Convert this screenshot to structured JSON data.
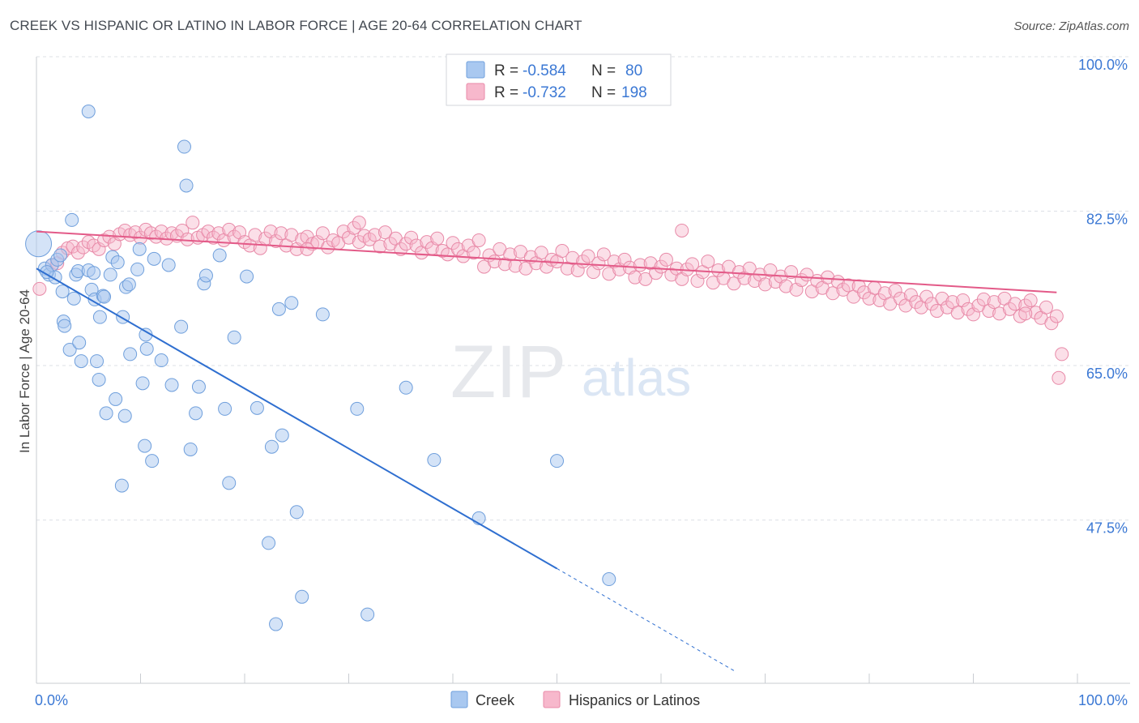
{
  "title": "CREEK VS HISPANIC OR LATINO IN LABOR FORCE | AGE 20-64 CORRELATION CHART",
  "source": "Source: ZipAtlas.com",
  "watermark": {
    "zip": "ZIP",
    "atlas": "atlas"
  },
  "colors": {
    "creek_fill": "#a9c8f0",
    "creek_stroke": "#6f9fdc",
    "creek_line": "#2f6fd0",
    "hisp_fill": "#f7b8cc",
    "hisp_stroke": "#e88aa8",
    "hisp_line": "#e35a88",
    "axis_text": "#3b78d4",
    "grid": "#dde0e6"
  },
  "legend": {
    "rows": [
      {
        "r_label": "R = ",
        "r_value": "-0.584",
        "n_label": "N = ",
        "n_value": "80"
      },
      {
        "r_label": "R = ",
        "r_value": "-0.732",
        "n_label": "N = ",
        "n_value": "198"
      }
    ]
  },
  "bottom_legend": {
    "creek": "Creek",
    "hisp": "Hispanics or Latinos"
  },
  "chart_data": {
    "type": "scatter",
    "ylabel": "In Labor Force | Age 20-64",
    "xlim": [
      0,
      100
    ],
    "ylim": [
      29,
      100
    ],
    "x_tick_labels": [
      "0.0%",
      "100.0%"
    ],
    "y_ticks": [
      {
        "value": 100,
        "label": "100.0%"
      },
      {
        "value": 82.5,
        "label": "82.5%"
      },
      {
        "value": 65,
        "label": "65.0%"
      },
      {
        "value": 47.5,
        "label": "47.5%"
      }
    ],
    "grid": true,
    "series": [
      {
        "name": "Creek",
        "r": -0.584,
        "n": 80,
        "trend": {
          "x0": 0,
          "y0": 76.0,
          "x1": 50,
          "y1": 42.0,
          "dash_to_x": 67
        },
        "points": [
          [
            0.2,
            78.8
          ],
          [
            0.8,
            76.0
          ],
          [
            1.2,
            75.3
          ],
          [
            1.5,
            76.4
          ],
          [
            1.8,
            75.0
          ],
          [
            2.0,
            77.0
          ],
          [
            2.3,
            77.5
          ],
          [
            2.5,
            73.4
          ],
          [
            2.6,
            70.0
          ],
          [
            2.7,
            69.5
          ],
          [
            3.2,
            66.8
          ],
          [
            3.4,
            81.5
          ],
          [
            3.6,
            72.6
          ],
          [
            3.8,
            75.3
          ],
          [
            4.0,
            75.7
          ],
          [
            4.1,
            67.6
          ],
          [
            4.3,
            65.5
          ],
          [
            5.0,
            75.8
          ],
          [
            5.3,
            73.6
          ],
          [
            5.5,
            75.5
          ],
          [
            5.6,
            72.5
          ],
          [
            5.8,
            65.5
          ],
          [
            6.0,
            63.4
          ],
          [
            6.1,
            70.5
          ],
          [
            6.4,
            72.9
          ],
          [
            6.5,
            72.8
          ],
          [
            6.7,
            59.6
          ],
          [
            7.1,
            75.3
          ],
          [
            7.3,
            77.3
          ],
          [
            7.6,
            61.2
          ],
          [
            7.8,
            76.7
          ],
          [
            8.2,
            51.4
          ],
          [
            8.3,
            70.5
          ],
          [
            8.5,
            59.3
          ],
          [
            8.6,
            73.9
          ],
          [
            8.9,
            74.2
          ],
          [
            9.0,
            66.3
          ],
          [
            9.7,
            75.9
          ],
          [
            9.9,
            78.2
          ],
          [
            10.2,
            63.0
          ],
          [
            10.4,
            55.9
          ],
          [
            10.5,
            68.5
          ],
          [
            10.6,
            66.9
          ],
          [
            11.1,
            54.2
          ],
          [
            11.3,
            77.1
          ],
          [
            12.0,
            65.6
          ],
          [
            12.7,
            76.4
          ],
          [
            13.0,
            62.8
          ],
          [
            13.9,
            69.4
          ],
          [
            14.2,
            89.8
          ],
          [
            14.4,
            85.4
          ],
          [
            14.8,
            55.5
          ],
          [
            15.3,
            59.6
          ],
          [
            15.6,
            62.6
          ],
          [
            16.1,
            74.3
          ],
          [
            16.3,
            75.2
          ],
          [
            17.6,
            77.5
          ],
          [
            18.1,
            60.1
          ],
          [
            18.5,
            51.7
          ],
          [
            19.0,
            68.2
          ],
          [
            20.2,
            75.1
          ],
          [
            21.2,
            60.2
          ],
          [
            22.3,
            44.9
          ],
          [
            22.6,
            55.8
          ],
          [
            23.0,
            35.7
          ],
          [
            23.3,
            71.4
          ],
          [
            23.6,
            57.1
          ],
          [
            24.5,
            72.1
          ],
          [
            25.0,
            48.4
          ],
          [
            25.5,
            38.8
          ],
          [
            27.5,
            70.8
          ],
          [
            30.8,
            60.1
          ],
          [
            31.8,
            36.8
          ],
          [
            38.2,
            54.3
          ],
          [
            42.5,
            47.7
          ],
          [
            50.0,
            54.2
          ],
          [
            5.0,
            93.8
          ],
          [
            35.5,
            62.5
          ],
          [
            55.0,
            40.8
          ],
          [
            1.0,
            75.6
          ]
        ]
      },
      {
        "name": "Hispanics or Latinos",
        "r": -0.732,
        "n": 198,
        "trend": {
          "x0": 0,
          "y0": 80.2,
          "x1": 98,
          "y1": 73.3
        },
        "points": [
          [
            0.3,
            73.7
          ],
          [
            1.5,
            76.4
          ],
          [
            2.0,
            76.6
          ],
          [
            2.5,
            77.8
          ],
          [
            3.0,
            78.3
          ],
          [
            3.5,
            78.5
          ],
          [
            4.0,
            77.8
          ],
          [
            4.5,
            78.4
          ],
          [
            5.0,
            79.0
          ],
          [
            5.5,
            78.6
          ],
          [
            6.0,
            78.2
          ],
          [
            6.5,
            79.2
          ],
          [
            7.0,
            79.6
          ],
          [
            7.5,
            78.8
          ],
          [
            8.0,
            79.9
          ],
          [
            8.5,
            80.3
          ],
          [
            9.0,
            79.8
          ],
          [
            9.5,
            80.1
          ],
          [
            10.0,
            79.5
          ],
          [
            10.5,
            80.4
          ],
          [
            11.0,
            80.0
          ],
          [
            11.5,
            79.6
          ],
          [
            12.0,
            80.2
          ],
          [
            12.5,
            79.4
          ],
          [
            13.0,
            80.0
          ],
          [
            13.5,
            79.7
          ],
          [
            14.0,
            80.3
          ],
          [
            14.5,
            79.3
          ],
          [
            15.0,
            81.2
          ],
          [
            15.5,
            79.5
          ],
          [
            16.0,
            79.8
          ],
          [
            16.5,
            80.2
          ],
          [
            17.0,
            79.5
          ],
          [
            17.5,
            80.0
          ],
          [
            18.0,
            79.2
          ],
          [
            18.5,
            80.4
          ],
          [
            19.0,
            79.6
          ],
          [
            19.5,
            80.1
          ],
          [
            20.0,
            79.0
          ],
          [
            20.5,
            78.6
          ],
          [
            21.0,
            79.8
          ],
          [
            21.5,
            78.3
          ],
          [
            22.0,
            79.4
          ],
          [
            22.5,
            80.2
          ],
          [
            23.0,
            79.1
          ],
          [
            23.5,
            80.0
          ],
          [
            24.0,
            78.6
          ],
          [
            24.5,
            79.8
          ],
          [
            25.0,
            78.2
          ],
          [
            25.5,
            79.3
          ],
          [
            26.0,
            79.6
          ],
          [
            26.5,
            78.8
          ],
          [
            27.0,
            79.0
          ],
          [
            27.5,
            80.0
          ],
          [
            28.0,
            78.4
          ],
          [
            28.5,
            79.2
          ],
          [
            29.0,
            78.9
          ],
          [
            29.5,
            80.2
          ],
          [
            30.0,
            79.5
          ],
          [
            30.5,
            80.6
          ],
          [
            31.0,
            79.0
          ],
          [
            31.5,
            79.7
          ],
          [
            32.0,
            79.3
          ],
          [
            32.5,
            79.8
          ],
          [
            33.0,
            78.5
          ],
          [
            33.5,
            80.1
          ],
          [
            34.0,
            78.8
          ],
          [
            34.5,
            79.4
          ],
          [
            35.0,
            78.2
          ],
          [
            35.5,
            78.8
          ],
          [
            36.0,
            79.5
          ],
          [
            36.5,
            78.6
          ],
          [
            37.0,
            77.8
          ],
          [
            37.5,
            79.0
          ],
          [
            38.0,
            78.3
          ],
          [
            38.5,
            79.4
          ],
          [
            39.0,
            78.0
          ],
          [
            39.5,
            77.6
          ],
          [
            40.0,
            78.9
          ],
          [
            40.5,
            78.2
          ],
          [
            41.0,
            77.4
          ],
          [
            41.5,
            78.6
          ],
          [
            42.0,
            77.8
          ],
          [
            42.5,
            79.2
          ],
          [
            43.0,
            76.2
          ],
          [
            43.5,
            77.5
          ],
          [
            44.0,
            76.8
          ],
          [
            44.5,
            78.2
          ],
          [
            45.0,
            76.5
          ],
          [
            45.5,
            77.6
          ],
          [
            46.0,
            76.3
          ],
          [
            46.5,
            77.9
          ],
          [
            47.0,
            76.0
          ],
          [
            47.5,
            77.3
          ],
          [
            48.0,
            76.6
          ],
          [
            48.5,
            77.8
          ],
          [
            49.0,
            76.2
          ],
          [
            49.5,
            77.0
          ],
          [
            50.0,
            76.8
          ],
          [
            50.5,
            78.0
          ],
          [
            51.0,
            76.0
          ],
          [
            51.5,
            77.2
          ],
          [
            52.0,
            75.8
          ],
          [
            52.5,
            76.8
          ],
          [
            53.0,
            77.4
          ],
          [
            53.5,
            75.6
          ],
          [
            54.0,
            76.6
          ],
          [
            54.5,
            77.6
          ],
          [
            55.0,
            75.4
          ],
          [
            55.5,
            76.8
          ],
          [
            56.0,
            75.9
          ],
          [
            56.5,
            77.0
          ],
          [
            57.0,
            76.1
          ],
          [
            57.5,
            75.0
          ],
          [
            58.0,
            76.4
          ],
          [
            58.5,
            74.8
          ],
          [
            59.0,
            76.6
          ],
          [
            59.5,
            75.5
          ],
          [
            60.0,
            76.2
          ],
          [
            60.5,
            77.0
          ],
          [
            61.0,
            75.3
          ],
          [
            61.5,
            76.0
          ],
          [
            62.0,
            74.8
          ],
          [
            62.5,
            75.9
          ],
          [
            63.0,
            76.5
          ],
          [
            63.5,
            74.6
          ],
          [
            64.0,
            75.6
          ],
          [
            64.5,
            76.8
          ],
          [
            65.0,
            74.4
          ],
          [
            65.5,
            75.8
          ],
          [
            66.0,
            74.9
          ],
          [
            66.5,
            76.2
          ],
          [
            67.0,
            74.3
          ],
          [
            67.5,
            75.6
          ],
          [
            68.0,
            74.9
          ],
          [
            68.5,
            76.0
          ],
          [
            69.0,
            74.6
          ],
          [
            69.5,
            75.3
          ],
          [
            70.0,
            74.2
          ],
          [
            70.5,
            75.8
          ],
          [
            71.0,
            74.5
          ],
          [
            71.5,
            75.1
          ],
          [
            72.0,
            74.0
          ],
          [
            72.5,
            75.6
          ],
          [
            73.0,
            73.6
          ],
          [
            73.5,
            74.7
          ],
          [
            74.0,
            75.3
          ],
          [
            74.5,
            73.4
          ],
          [
            75.0,
            74.6
          ],
          [
            75.5,
            73.8
          ],
          [
            76.0,
            75.0
          ],
          [
            76.5,
            73.2
          ],
          [
            77.0,
            74.5
          ],
          [
            77.5,
            73.6
          ],
          [
            78.0,
            74.1
          ],
          [
            78.5,
            72.8
          ],
          [
            79.0,
            74.0
          ],
          [
            79.5,
            73.3
          ],
          [
            80.0,
            72.6
          ],
          [
            80.5,
            73.8
          ],
          [
            81.0,
            72.4
          ],
          [
            81.5,
            73.2
          ],
          [
            82.0,
            72.0
          ],
          [
            82.5,
            73.5
          ],
          [
            83.0,
            72.6
          ],
          [
            83.5,
            71.8
          ],
          [
            84.0,
            73.0
          ],
          [
            84.5,
            72.2
          ],
          [
            85.0,
            71.6
          ],
          [
            85.5,
            72.8
          ],
          [
            86.0,
            72.0
          ],
          [
            86.5,
            71.2
          ],
          [
            87.0,
            72.6
          ],
          [
            87.5,
            71.6
          ],
          [
            88.0,
            72.2
          ],
          [
            88.5,
            71.0
          ],
          [
            89.0,
            72.4
          ],
          [
            89.5,
            71.4
          ],
          [
            90.0,
            70.8
          ],
          [
            90.5,
            71.8
          ],
          [
            91.0,
            72.5
          ],
          [
            91.5,
            71.2
          ],
          [
            92.0,
            72.2
          ],
          [
            92.5,
            70.9
          ],
          [
            93.0,
            72.6
          ],
          [
            93.5,
            71.4
          ],
          [
            94.0,
            72.0
          ],
          [
            94.5,
            70.6
          ],
          [
            95.0,
            71.8
          ],
          [
            95.5,
            72.4
          ],
          [
            96.0,
            71.0
          ],
          [
            96.5,
            70.4
          ],
          [
            97.0,
            71.6
          ],
          [
            97.5,
            69.8
          ],
          [
            98.0,
            70.6
          ],
          [
            98.5,
            66.3
          ],
          [
            98.2,
            63.6
          ],
          [
            26.0,
            78.2
          ],
          [
            31.0,
            81.2
          ],
          [
            62.0,
            80.3
          ],
          [
            95.0,
            70.9
          ]
        ]
      }
    ]
  }
}
